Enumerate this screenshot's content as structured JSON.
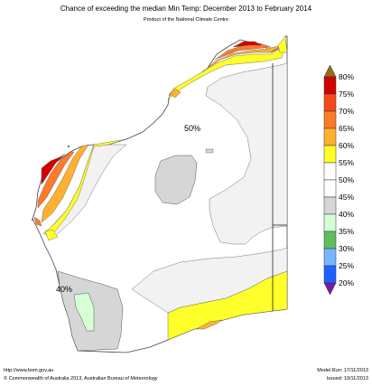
{
  "title": "Chance of exceeding the median Min Temp: December 2013 to February 2014",
  "subtitle": "Product of the National Climate Centre",
  "map_labels": {
    "center": "50%",
    "southwest": "40%"
  },
  "legend": {
    "items": [
      {
        "label": "80%",
        "color": "#d30000"
      },
      {
        "label": "75%",
        "color": "#f44a1b"
      },
      {
        "label": "70%",
        "color": "#ff7a2a"
      },
      {
        "label": "65%",
        "color": "#ffb030"
      },
      {
        "label": "60%",
        "color": "#ffff2a"
      },
      {
        "label": "55%",
        "color": "#ffffff"
      },
      {
        "label": "50%",
        "color": "#ffffff"
      },
      {
        "label": "45%",
        "color": "#d6d6d6"
      },
      {
        "label": "40%",
        "color": "#d6ffd6"
      },
      {
        "label": "35%",
        "color": "#5fbf5f"
      },
      {
        "label": "30%",
        "color": "#77b5ff"
      },
      {
        "label": "25%",
        "color": "#2060ff"
      },
      {
        "label": "20%",
        "color": "#7a1aa6"
      }
    ],
    "top_arrow_color": "#9a6a1a",
    "bottom_arrow_color": "#7a1aa6"
  },
  "footer": {
    "url": "http://www.bom.gov.au",
    "copyright": "©  Commonwealth of Australia 2013, Australian Bureau of Meteorology",
    "model_run": "Model Run: 17/11/2013",
    "issued": "Issued: 19/11/2013"
  }
}
